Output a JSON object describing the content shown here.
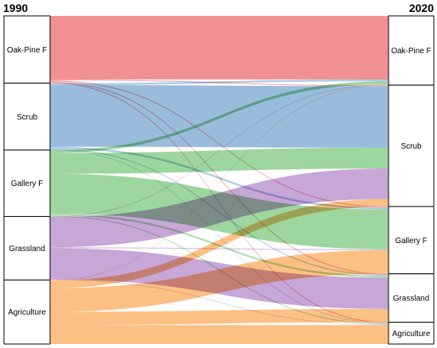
{
  "years": {
    "left": "1990",
    "right": "2020"
  },
  "colors": {
    "Oak-Pine F": "#f08a8c",
    "Scrub": "#93b8db",
    "Gallery F": "#98d49a",
    "Grassland": "#c4a1d6",
    "Agriculture": "#fcbd7e"
  },
  "left_nodes": [
    {
      "name": "Oak-Pine F"
    },
    {
      "name": "Scrub"
    },
    {
      "name": "Gallery F"
    },
    {
      "name": "Grassland"
    },
    {
      "name": "Agriculture"
    }
  ],
  "right_nodes": [
    {
      "name": "Oak-Pine F"
    },
    {
      "name": "Scrub"
    },
    {
      "name": "Gallery F"
    },
    {
      "name": "Grassland"
    },
    {
      "name": "Agriculture"
    }
  ],
  "flows": [
    {
      "from": "Oak-Pine F",
      "to": "Oak-Pine F",
      "value": 67
    },
    {
      "from": "Oak-Pine F",
      "to": "Scrub",
      "value": 1
    },
    {
      "from": "Oak-Pine F",
      "to": "Gallery F",
      "value": 1
    },
    {
      "from": "Oak-Pine F",
      "to": "Grassland",
      "value": 1
    },
    {
      "from": "Oak-Pine F",
      "to": "Agriculture",
      "value": 1
    },
    {
      "from": "Scrub",
      "to": "Oak-Pine F",
      "value": 2
    },
    {
      "from": "Scrub",
      "to": "Scrub",
      "value": 65
    },
    {
      "from": "Scrub",
      "to": "Gallery F",
      "value": 2
    },
    {
      "from": "Scrub",
      "to": "Grassland",
      "value": 1
    },
    {
      "from": "Scrub",
      "to": "Agriculture",
      "value": 0.5
    },
    {
      "from": "Gallery F",
      "to": "Oak-Pine F",
      "value": 3
    },
    {
      "from": "Gallery F",
      "to": "Scrub",
      "value": 22
    },
    {
      "from": "Gallery F",
      "to": "Gallery F",
      "value": 42
    },
    {
      "from": "Gallery F",
      "to": "Grassland",
      "value": 2
    },
    {
      "from": "Gallery F",
      "to": "Agriculture",
      "value": 1
    },
    {
      "from": "Grassland",
      "to": "Oak-Pine F",
      "value": 0.5
    },
    {
      "from": "Grassland",
      "to": "Scrub",
      "value": 32
    },
    {
      "from": "Grassland",
      "to": "Gallery F",
      "value": 1
    },
    {
      "from": "Grassland",
      "to": "Grassland",
      "value": 33
    },
    {
      "from": "Grassland",
      "to": "Agriculture",
      "value": 0.5
    },
    {
      "from": "Agriculture",
      "to": "Oak-Pine F",
      "value": 0.5
    },
    {
      "from": "Agriculture",
      "to": "Scrub",
      "value": 8
    },
    {
      "from": "Agriculture",
      "to": "Gallery F",
      "value": 25
    },
    {
      "from": "Agriculture",
      "to": "Grassland",
      "value": 14
    },
    {
      "from": "Agriculture",
      "to": "Agriculture",
      "value": 20
    }
  ]
}
